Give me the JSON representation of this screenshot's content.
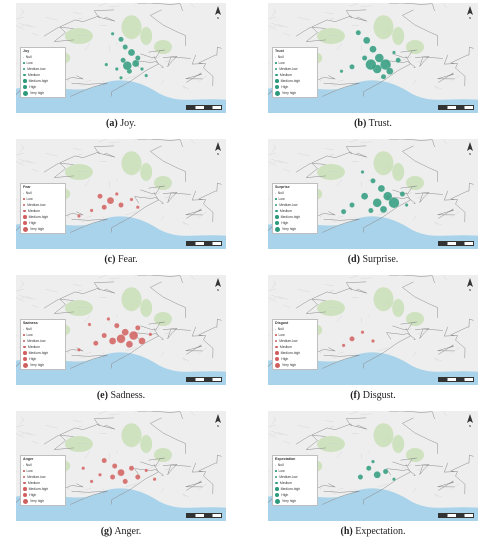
{
  "colors": {
    "green": "#2e9a7b",
    "red": "#d0605f",
    "sea": "#a9d3ea",
    "land": "#eeeeee",
    "park": "#c7dfb4"
  },
  "legend_levels": [
    "Null",
    "Low",
    "Medium-low",
    "Medium",
    "Medium-high",
    "High",
    "Very high"
  ],
  "panels": [
    {
      "id": "a",
      "letter": "(a)",
      "label": "Joy.",
      "legend_title": "Joy",
      "color": "green",
      "points": [
        [
          0.46,
          0.28,
          1
        ],
        [
          0.5,
          0.33,
          2
        ],
        [
          0.52,
          0.4,
          2
        ],
        [
          0.55,
          0.45,
          3
        ],
        [
          0.51,
          0.52,
          2
        ],
        [
          0.57,
          0.55,
          3
        ],
        [
          0.54,
          0.62,
          2
        ],
        [
          0.6,
          0.6,
          1
        ],
        [
          0.48,
          0.6,
          1
        ],
        [
          0.58,
          0.5,
          2
        ],
        [
          0.43,
          0.56,
          1
        ],
        [
          0.62,
          0.66,
          1
        ],
        [
          0.53,
          0.57,
          4
        ],
        [
          0.5,
          0.68,
          1
        ]
      ]
    },
    {
      "id": "b",
      "letter": "(b)",
      "label": "Trust.",
      "legend_title": "Trust",
      "color": "green",
      "points": [
        [
          0.43,
          0.27,
          2
        ],
        [
          0.47,
          0.34,
          3
        ],
        [
          0.5,
          0.42,
          3
        ],
        [
          0.53,
          0.5,
          4
        ],
        [
          0.56,
          0.56,
          5
        ],
        [
          0.52,
          0.6,
          4
        ],
        [
          0.58,
          0.62,
          3
        ],
        [
          0.46,
          0.5,
          2
        ],
        [
          0.4,
          0.58,
          2
        ],
        [
          0.35,
          0.62,
          1
        ],
        [
          0.62,
          0.52,
          2
        ],
        [
          0.6,
          0.45,
          1
        ],
        [
          0.49,
          0.56,
          5
        ],
        [
          0.55,
          0.67,
          2
        ]
      ]
    },
    {
      "id": "c",
      "letter": "(c)",
      "label": "Fear.",
      "legend_title": "Fear",
      "color": "red",
      "points": [
        [
          0.4,
          0.52,
          2
        ],
        [
          0.45,
          0.56,
          3
        ],
        [
          0.5,
          0.6,
          2
        ],
        [
          0.36,
          0.65,
          1
        ],
        [
          0.55,
          0.55,
          1
        ],
        [
          0.42,
          0.62,
          2
        ],
        [
          0.48,
          0.5,
          1
        ],
        [
          0.3,
          0.7,
          1
        ],
        [
          0.58,
          0.62,
          1
        ]
      ]
    },
    {
      "id": "d",
      "letter": "(d)",
      "label": "Surprise.",
      "legend_title": "Surprise",
      "color": "green",
      "points": [
        [
          0.45,
          0.3,
          1
        ],
        [
          0.5,
          0.38,
          2
        ],
        [
          0.54,
          0.45,
          3
        ],
        [
          0.57,
          0.52,
          4
        ],
        [
          0.6,
          0.58,
          5
        ],
        [
          0.52,
          0.58,
          4
        ],
        [
          0.46,
          0.52,
          3
        ],
        [
          0.4,
          0.6,
          2
        ],
        [
          0.36,
          0.66,
          2
        ],
        [
          0.64,
          0.5,
          2
        ],
        [
          0.66,
          0.6,
          1
        ],
        [
          0.55,
          0.64,
          3
        ],
        [
          0.49,
          0.65,
          2
        ]
      ]
    },
    {
      "id": "e",
      "letter": "(e)",
      "label": "Sadness.",
      "legend_title": "Sadness",
      "color": "red",
      "points": [
        [
          0.44,
          0.4,
          1
        ],
        [
          0.48,
          0.46,
          2
        ],
        [
          0.52,
          0.52,
          3
        ],
        [
          0.56,
          0.55,
          4
        ],
        [
          0.5,
          0.58,
          4
        ],
        [
          0.46,
          0.6,
          3
        ],
        [
          0.42,
          0.55,
          2
        ],
        [
          0.38,
          0.62,
          2
        ],
        [
          0.6,
          0.6,
          3
        ],
        [
          0.64,
          0.54,
          1
        ],
        [
          0.35,
          0.45,
          1
        ],
        [
          0.3,
          0.68,
          1
        ],
        [
          0.54,
          0.63,
          3
        ],
        [
          0.58,
          0.48,
          2
        ]
      ]
    },
    {
      "id": "f",
      "letter": "(f)",
      "label": "Disgust.",
      "legend_title": "Disgust",
      "color": "red",
      "points": [
        [
          0.4,
          0.58,
          2
        ],
        [
          0.45,
          0.52,
          1
        ],
        [
          0.5,
          0.6,
          1
        ],
        [
          0.36,
          0.64,
          1
        ]
      ]
    },
    {
      "id": "g",
      "letter": "(g)",
      "label": "Anger.",
      "legend_title": "Anger",
      "color": "red",
      "points": [
        [
          0.42,
          0.45,
          2
        ],
        [
          0.47,
          0.5,
          2
        ],
        [
          0.5,
          0.56,
          3
        ],
        [
          0.55,
          0.52,
          2
        ],
        [
          0.46,
          0.6,
          2
        ],
        [
          0.4,
          0.58,
          1
        ],
        [
          0.36,
          0.64,
          1
        ],
        [
          0.58,
          0.6,
          2
        ],
        [
          0.62,
          0.54,
          1
        ],
        [
          0.52,
          0.64,
          2
        ],
        [
          0.32,
          0.52,
          1
        ],
        [
          0.66,
          0.62,
          1
        ]
      ]
    },
    {
      "id": "h",
      "letter": "(h)",
      "label": "Expectation.",
      "legend_title": "Expectation",
      "color": "green",
      "points": [
        [
          0.48,
          0.52,
          2
        ],
        [
          0.52,
          0.58,
          3
        ],
        [
          0.56,
          0.55,
          2
        ],
        [
          0.44,
          0.6,
          2
        ],
        [
          0.6,
          0.62,
          1
        ],
        [
          0.5,
          0.46,
          1
        ]
      ]
    }
  ]
}
